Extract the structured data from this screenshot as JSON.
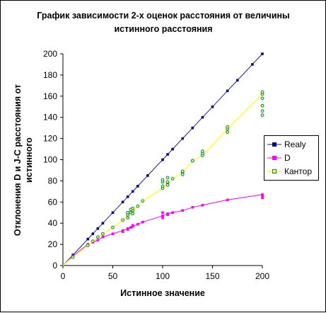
{
  "chart_data": {
    "type": "line",
    "title": "График зависимости 2-х оценок расстояния от величины истинного расстояния",
    "xlabel": "Истинное значение",
    "ylabel": "Отклонения D и J-C расстояния от истинного",
    "xlim": [
      0,
      200
    ],
    "ylim": [
      0,
      200
    ],
    "xticks": [
      "0",
      "50",
      "100",
      "150",
      "200"
    ],
    "yticks": [
      "0",
      "20",
      "40",
      "60",
      "80",
      "100",
      "120",
      "140",
      "160",
      "180",
      "200"
    ],
    "grid": false,
    "legend_position": "right",
    "series": [
      {
        "name": "Realy",
        "color": "#1f1f8f",
        "marker_color": "#000080",
        "x": [
          0,
          10,
          25,
          30,
          35,
          40,
          50,
          60,
          65,
          70,
          75,
          85,
          100,
          105,
          110,
          120,
          130,
          140,
          150,
          165,
          175,
          190,
          200
        ],
        "y": [
          0,
          10,
          25,
          30,
          35,
          40,
          50,
          60,
          65,
          70,
          75,
          85,
          100,
          105,
          110,
          120,
          130,
          140,
          150,
          165,
          175,
          190,
          200
        ]
      },
      {
        "name": "D",
        "color": "#ff00ff",
        "marker_color": "#ff00ff",
        "x": [
          0,
          10,
          25,
          30,
          35,
          40,
          50,
          60,
          65,
          70,
          75,
          80,
          100,
          105,
          110,
          120,
          130,
          140,
          165,
          200
        ],
        "y": [
          0,
          9,
          20,
          22,
          24,
          27,
          30,
          33,
          35,
          37,
          39,
          41,
          47,
          49,
          50,
          52,
          55,
          57,
          62,
          67
        ]
      },
      {
        "name": "Кантор",
        "color": "#ffff33",
        "marker_color": "#008080",
        "x": [
          0,
          10,
          25,
          30,
          35,
          40,
          50,
          60,
          65,
          70,
          75,
          80,
          100,
          105,
          110,
          120,
          130,
          140,
          165,
          200
        ],
        "y": [
          0,
          8,
          19,
          23,
          27,
          30,
          36,
          43,
          48,
          52,
          56,
          61,
          73,
          78,
          82,
          88,
          99,
          104,
          129,
          162
        ]
      }
    ],
    "extra_markers": {
      "Кантор": {
        "x": [
          65,
          65,
          68,
          68,
          70,
          70,
          100,
          100,
          100,
          105,
          105,
          105,
          120,
          120,
          130,
          140,
          140,
          165,
          165,
          200,
          200,
          200,
          200,
          200
        ],
        "y": [
          45,
          50,
          50,
          53,
          49,
          54,
          75,
          79,
          81,
          76,
          79,
          83,
          86,
          89,
          99,
          106,
          108,
          126,
          131,
          142,
          146,
          151,
          158,
          164
        ]
      },
      "D": {
        "x": [
          60,
          65,
          68,
          70,
          100,
          100,
          105,
          200,
          200
        ],
        "y": [
          32,
          34,
          36,
          38,
          45,
          50,
          48,
          64,
          66
        ]
      }
    }
  }
}
